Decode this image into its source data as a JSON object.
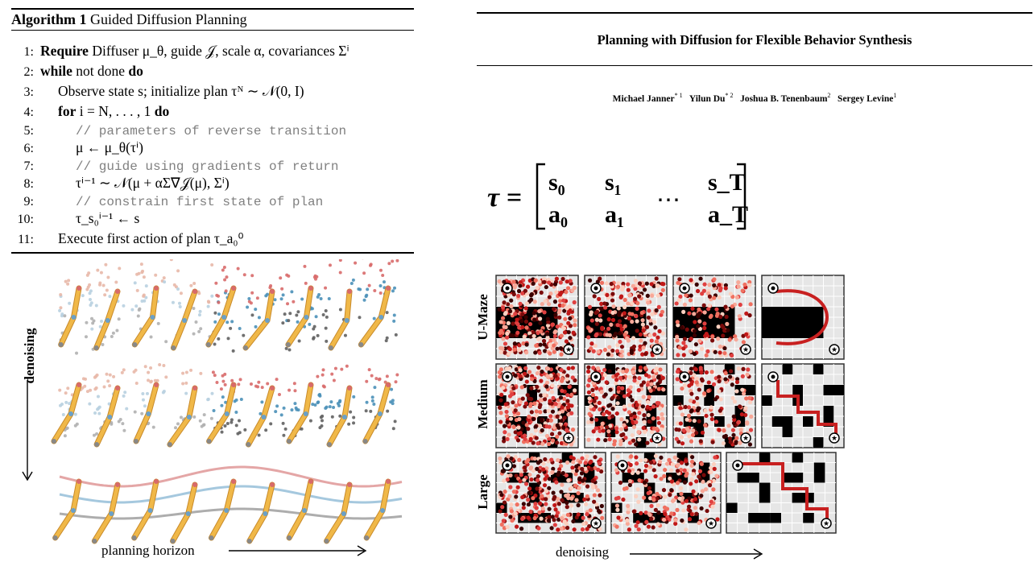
{
  "algorithm": {
    "label": "Algorithm 1",
    "title": "Guided Diffusion Planning",
    "lines": [
      {
        "n": "1:",
        "kw": "Require",
        "text": " Diffuser μ_θ, guide 𝒥, scale α, covariances Σⁱ"
      },
      {
        "n": "2:",
        "kw": "while",
        "text": " not done ",
        "kw2": "do"
      },
      {
        "n": "3:",
        "text": "Observe state s; initialize plan τᴺ ∼ 𝒩(0, I)"
      },
      {
        "n": "4:",
        "kw": "for",
        "text": " i = N, . . . , 1 ",
        "kw2": "do"
      },
      {
        "n": "5:",
        "comment": "// parameters of reverse transition"
      },
      {
        "n": "6:",
        "text": "μ ← μ_θ(τⁱ)"
      },
      {
        "n": "7:",
        "comment": "// guide using gradients of return"
      },
      {
        "n": "8:",
        "text": "τⁱ⁻¹ ∼ 𝒩(μ + αΣ∇𝒥(μ), Σⁱ)"
      },
      {
        "n": "9:",
        "comment": "// constrain first state of plan"
      },
      {
        "n": "10:",
        "text": "τ_s₀ⁱ⁻¹ ← s"
      },
      {
        "n": "11:",
        "text": "Execute first action of plan τ_a₀⁰"
      }
    ]
  },
  "paper": {
    "title": "Planning with Diffusion for Flexible Behavior Synthesis",
    "authors": [
      {
        "name": "Michael Janner",
        "sup": "* 1"
      },
      {
        "name": "Yilun Du",
        "sup": "* 2"
      },
      {
        "name": "Joshua B. Tenenbaum",
        "sup": "2"
      },
      {
        "name": "Sergey Levine",
        "sup": "1"
      }
    ]
  },
  "equation": {
    "lhs": "τ =",
    "row1": [
      "s₀",
      "s₁",
      "s_T"
    ],
    "row2": [
      "a₀",
      "a₁",
      "a_T"
    ],
    "dots": "⋯"
  },
  "left_figure": {
    "y_label": "denoising",
    "x_label": "planning horizon"
  },
  "right_figure": {
    "rows": [
      "U-Maze",
      "Medium",
      "Large"
    ],
    "x_label": "denoising"
  }
}
